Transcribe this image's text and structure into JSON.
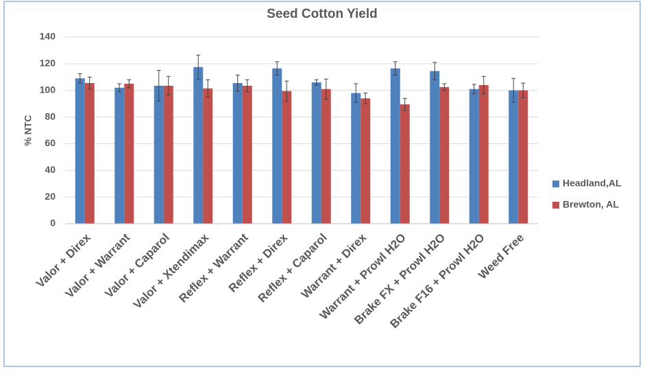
{
  "chart_data": {
    "type": "bar",
    "title": "Seed Cotton Yield",
    "y_label": "% NTC",
    "categories": [
      "Valor + Direx",
      "Valor + Warrant",
      "Valor + Caparol",
      "Valor + Xtendimax",
      "Reflex + Warrant",
      "Reflex + Direx",
      "Reflex + Caparol",
      "Warrant + Direx",
      "Warrant + Prowl H2O",
      "Brake FX + Prowl H2O",
      "Brake F16 + Prowl H2O",
      "Weed Free"
    ],
    "series": [
      {
        "name": "Headland,AL",
        "color": "#4f81bd",
        "values": [
          109,
          102,
          103.5,
          117.5,
          105.5,
          116.5,
          106,
          98,
          116.5,
          114.5,
          101,
          100
        ],
        "errors": [
          3.5,
          3,
          11.5,
          9,
          6,
          5,
          2,
          7,
          5,
          6.5,
          3.5,
          9
        ]
      },
      {
        "name": "Brewton, AL",
        "color": "#c0504d",
        "values": [
          105.5,
          105,
          103.5,
          101.5,
          103.5,
          99.5,
          101,
          94,
          89.5,
          102.5,
          104,
          100
        ],
        "errors": [
          4.5,
          3,
          7,
          6.5,
          4.5,
          7.5,
          7.5,
          4,
          4.5,
          2.5,
          6.5,
          5.5
        ]
      }
    ],
    "ylim": [
      0,
      140
    ],
    "yticks": [
      0,
      20,
      40,
      60,
      80,
      100,
      120,
      140
    ],
    "grid": true,
    "legend": "right"
  }
}
